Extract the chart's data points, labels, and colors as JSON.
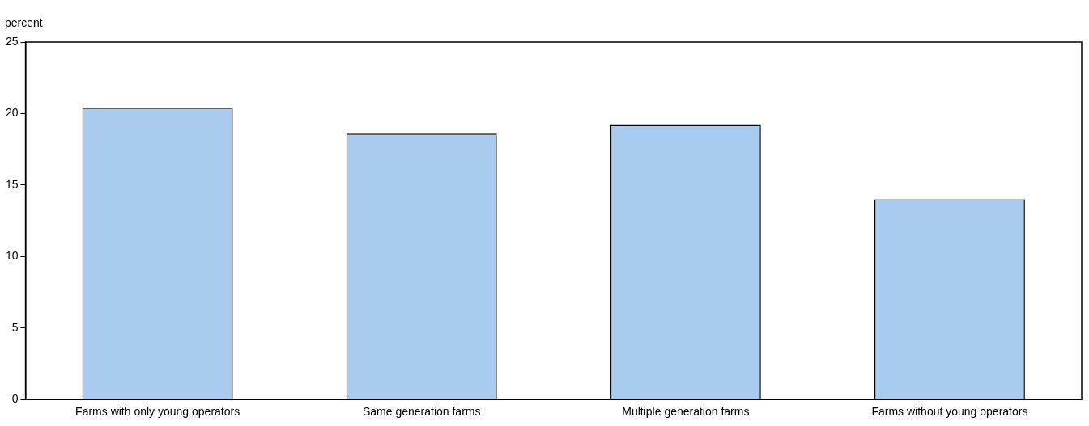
{
  "chart_data": {
    "type": "bar",
    "ylabel": "percent",
    "categories": [
      "Farms with only young operators",
      "Same generation farms",
      "Multiple generation farms",
      "Farms without young operators"
    ],
    "values": [
      20.4,
      18.6,
      19.2,
      14.0
    ],
    "color": "#a9cbef",
    "ylim": [
      0,
      25
    ],
    "yticks": [
      0,
      5,
      10,
      15,
      20,
      25
    ],
    "grid": false,
    "legend": false
  }
}
